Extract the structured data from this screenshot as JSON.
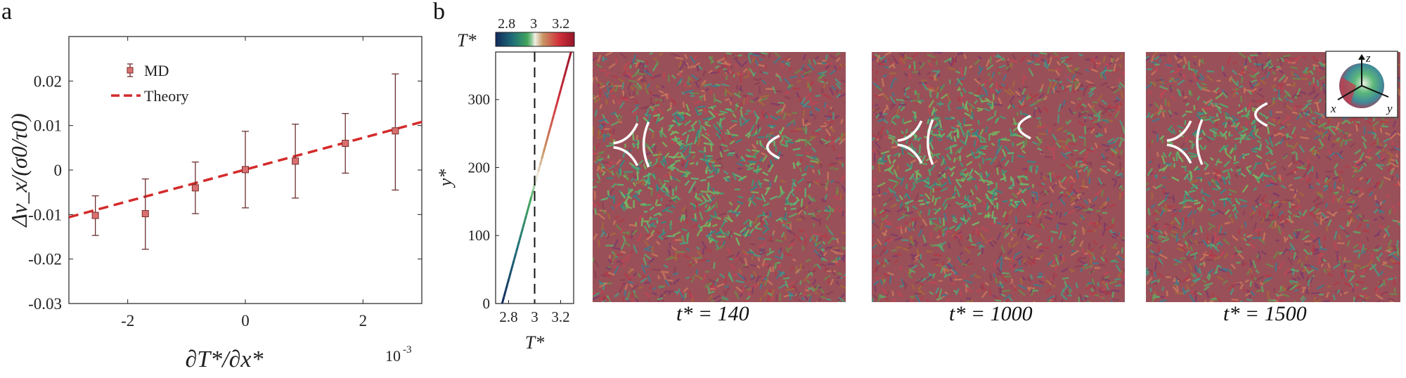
{
  "panel_a": {
    "letter": "a",
    "multiplier": "10",
    "multiplier_exp": "-3"
  },
  "panel_b": {
    "letter": "b",
    "colorbar_label": "T*",
    "colorbar_ticks": [
      "2.8",
      "3",
      "3.2"
    ],
    "profile_ylabel": "y*",
    "profile_xlabel": "T*",
    "profile_yticks": [
      "0",
      "100",
      "200",
      "300"
    ],
    "profile_xticks": [
      "2.8",
      "3",
      "3.2"
    ],
    "snapshots": [
      {
        "caption": "t* = 140"
      },
      {
        "caption": "t* = 1000"
      },
      {
        "caption": "t* = 1500"
      }
    ],
    "axes_inset_labels": [
      "z",
      "x",
      "y"
    ]
  },
  "chart_data": [
    {
      "type": "scatter",
      "title": "",
      "xlabel": "∂T*/∂x*",
      "ylabel": "Δv_x/(σ0/τ0)",
      "xlim": [
        -3,
        3
      ],
      "ylim": [
        -0.03,
        0.03
      ],
      "x_scale_note": "10^-3",
      "xticks": [
        "-2",
        "0",
        "2"
      ],
      "yticks": [
        "-0.03",
        "-0.02",
        "-0.01",
        "0",
        "0.01",
        "0.02"
      ],
      "legend_position": "top-left",
      "series": [
        {
          "name": "MD",
          "x": [
            -2.55,
            -1.7,
            -0.85,
            0,
            0.85,
            1.7,
            2.55
          ],
          "y": [
            -0.0102,
            -0.0098,
            -0.004,
            0.0001,
            0.002,
            0.006,
            0.0088
          ],
          "err_low": [
            -0.0147,
            -0.0178,
            -0.0098,
            -0.0085,
            -0.0063,
            -0.0007,
            -0.0045
          ],
          "err_high": [
            -0.0058,
            -0.002,
            0.0018,
            0.0087,
            0.0103,
            0.0127,
            0.0216
          ],
          "color": "#d97070"
        },
        {
          "name": "Theory",
          "x": [
            -3,
            3
          ],
          "y": [
            -0.0106,
            0.0108
          ],
          "color": "#d42a2a",
          "style": "dashed"
        }
      ]
    },
    {
      "type": "line",
      "title": "",
      "xlabel": "T*",
      "ylabel": "y*",
      "xlim": [
        2.7,
        3.3
      ],
      "ylim": [
        0,
        370
      ],
      "series": [
        {
          "name": "",
          "x": [
            2.75,
            3.28
          ],
          "y": [
            0,
            370
          ],
          "colormap": "temperature"
        }
      ],
      "reference_line": {
        "x": 3.0,
        "style": "dashed"
      }
    }
  ]
}
